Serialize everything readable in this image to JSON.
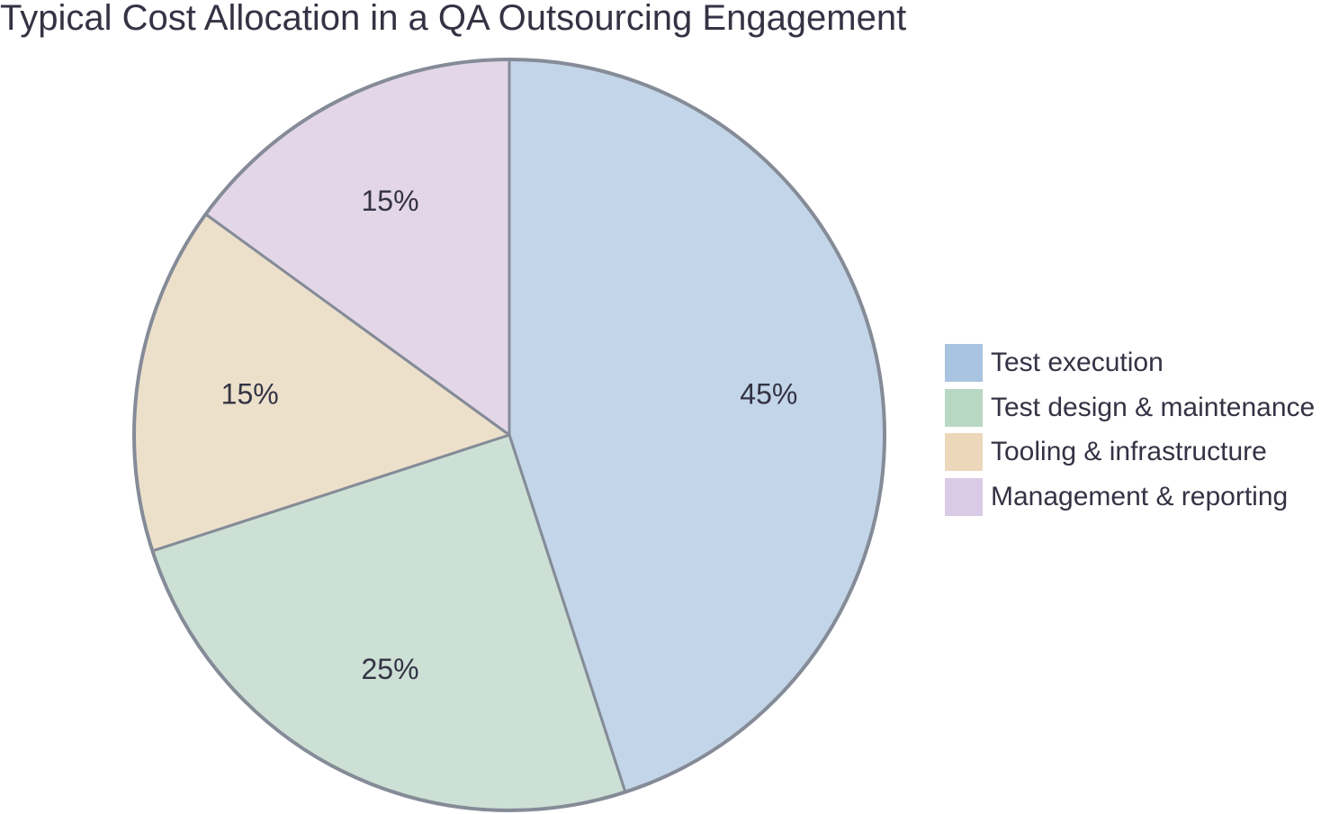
{
  "chart_data": {
    "type": "pie",
    "title": "Typical Cost Allocation in a QA Outsourcing Engagement",
    "slices": [
      {
        "label": "Test execution",
        "value": 45,
        "value_label": "45%",
        "fill": "#c3d5e8",
        "legend_color": "#a9c4e0"
      },
      {
        "label": "Test design & maintenance",
        "value": 25,
        "value_label": "25%",
        "fill": "#cde0d5",
        "legend_color": "#b8d8c4"
      },
      {
        "label": "Tooling & infrastructure",
        "value": 15,
        "value_label": "15%",
        "fill": "#ede0cb",
        "legend_color": "#ecd7bb"
      },
      {
        "label": "Management & reporting",
        "value": 15,
        "value_label": "15%",
        "fill": "#e2d6e7",
        "legend_color": "#d9cbe5"
      }
    ],
    "start_angle": "12 o'clock",
    "direction": "clockwise",
    "legend_placement": "right",
    "stroke_color": "#858b97"
  }
}
